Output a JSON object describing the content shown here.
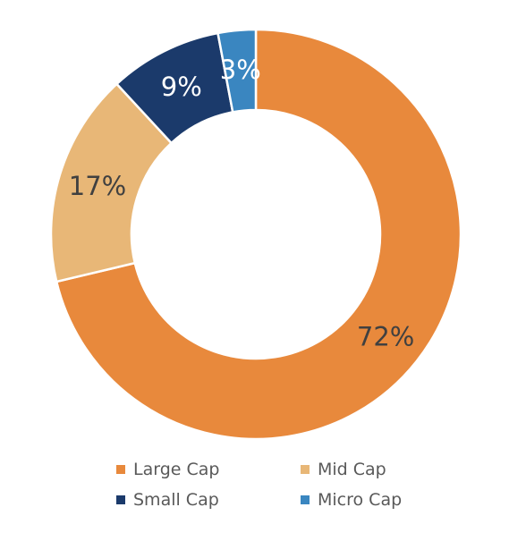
{
  "chart_data": {
    "type": "pie",
    "title": "",
    "donut": true,
    "legend_position": "bottom",
    "slices": [
      {
        "name": "Large Cap",
        "value": 72,
        "label": "72%",
        "color": "#E8893C",
        "label_color": "#404040"
      },
      {
        "name": "Mid Cap",
        "value": 17,
        "label": "17%",
        "color": "#E8B777",
        "label_color": "#404040"
      },
      {
        "name": "Small Cap",
        "value": 9,
        "label": "9%",
        "color": "#1B3A6B",
        "label_color": "#ffffff"
      },
      {
        "name": "Micro Cap",
        "value": 3,
        "label": "3%",
        "color": "#3A86C0",
        "label_color": "#ffffff"
      }
    ]
  },
  "legend": {
    "items": [
      {
        "label": "Large Cap",
        "color": "#E8893C"
      },
      {
        "label": "Mid Cap",
        "color": "#E8B777"
      },
      {
        "label": "Small Cap",
        "color": "#1B3A6B"
      },
      {
        "label": "Micro Cap",
        "color": "#3A86C0"
      }
    ]
  }
}
